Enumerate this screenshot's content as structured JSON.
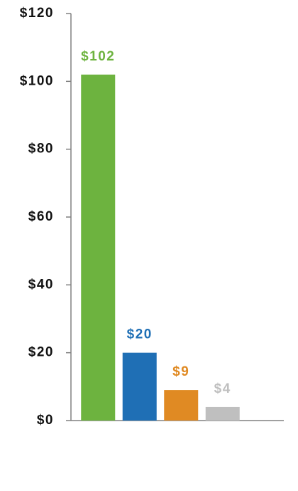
{
  "chart_data": {
    "type": "bar",
    "categories": [
      null,
      null,
      null,
      null
    ],
    "values": [
      102,
      20,
      9,
      4
    ],
    "value_labels": [
      "$102",
      "$20",
      "$9",
      "$4"
    ],
    "colors": [
      "#6db33f",
      "#1f6fb5",
      "#e08a23",
      "#bfbfbf"
    ],
    "ylim": [
      0,
      120
    ],
    "yticks": [
      {
        "value": 0,
        "label": "$0"
      },
      {
        "value": 20,
        "label": "$20"
      },
      {
        "value": 40,
        "label": "$40"
      },
      {
        "value": 60,
        "label": "$60"
      },
      {
        "value": 80,
        "label": "$80"
      },
      {
        "value": 100,
        "label": "$100"
      },
      {
        "value": 120,
        "label": "$120"
      }
    ],
    "grid": false
  }
}
